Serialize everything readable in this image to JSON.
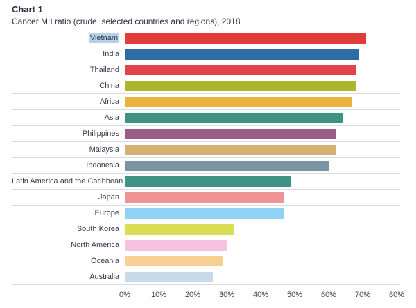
{
  "header": {
    "title": "Chart 1",
    "subtitle": "Cancer M:I ratio (crude, selected countries and regions), 2018"
  },
  "theme": {
    "text_color": "#33334a",
    "grid_color": "#d8dde2",
    "background": "#ffffff"
  },
  "chart_data": {
    "type": "bar",
    "orientation": "horizontal",
    "title": "Chart 1",
    "subtitle": "Cancer M:I ratio (crude, selected countries and regions), 2018",
    "xlabel": "",
    "ylabel": "",
    "unit": "%",
    "xlim": [
      0,
      80
    ],
    "x_tick_values": [
      0,
      10,
      20,
      30,
      40,
      50,
      60,
      70,
      80
    ],
    "x_tick_labels": [
      "0%",
      "10%",
      "20%",
      "30%",
      "40%",
      "50%",
      "60%",
      "70%",
      "80%"
    ],
    "grid": "horizontal row separators only, no vertical gridlines",
    "legend": "none",
    "highlighted_category": "Vietnam",
    "highlight_color": "#b6d2ea",
    "categories": [
      "Vietnam",
      "India",
      "Thailand",
      "China",
      "Africa",
      "Asia",
      "Philippines",
      "Malaysia",
      "Indonesia",
      "Latin America and the Caribbean",
      "Japan",
      "Europe",
      "South Korea",
      "North America",
      "Oceania",
      "Australia"
    ],
    "values": [
      71,
      69,
      68,
      68,
      67,
      64,
      62,
      62,
      60,
      49,
      47,
      47,
      32,
      30,
      29,
      26
    ],
    "bar_colors": [
      "#e13b3b",
      "#2d6ca5",
      "#e0434a",
      "#adb52f",
      "#ecb23e",
      "#3f9384",
      "#9a5c86",
      "#d4b173",
      "#7c93a4",
      "#3f9384",
      "#f09394",
      "#90d3f6",
      "#d9de56",
      "#f6c2e0",
      "#f7cf93",
      "#c6dae7"
    ]
  }
}
